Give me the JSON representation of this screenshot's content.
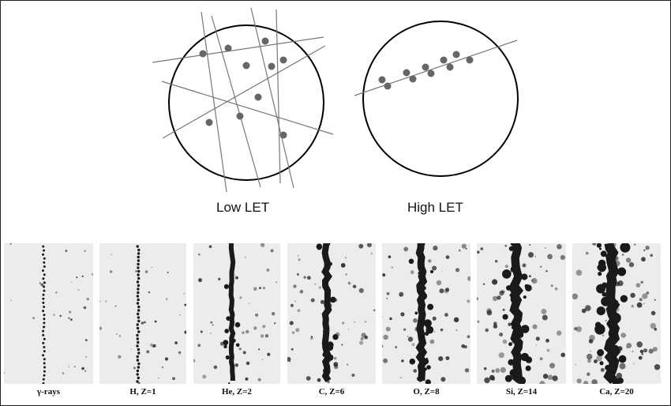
{
  "diagrams": {
    "low_let_label": "Low LET",
    "high_let_label": "High LET"
  },
  "panels": [
    {
      "caption": "γ-rays",
      "track_density": 0.15
    },
    {
      "caption": "H, Z=1",
      "track_density": 0.25
    },
    {
      "caption": "He, Z=2",
      "track_density": 0.4
    },
    {
      "caption": "C, Z=6",
      "track_density": 0.6
    },
    {
      "caption": "O, Z=8",
      "track_density": 0.7
    },
    {
      "caption": "Si, Z=14",
      "track_density": 0.85
    },
    {
      "caption": "Ca, Z=20",
      "track_density": 1.0
    }
  ],
  "colors": {
    "line": "#777777",
    "dot": "#666666",
    "circle": "#000000",
    "ink": "#1a1a1a"
  }
}
